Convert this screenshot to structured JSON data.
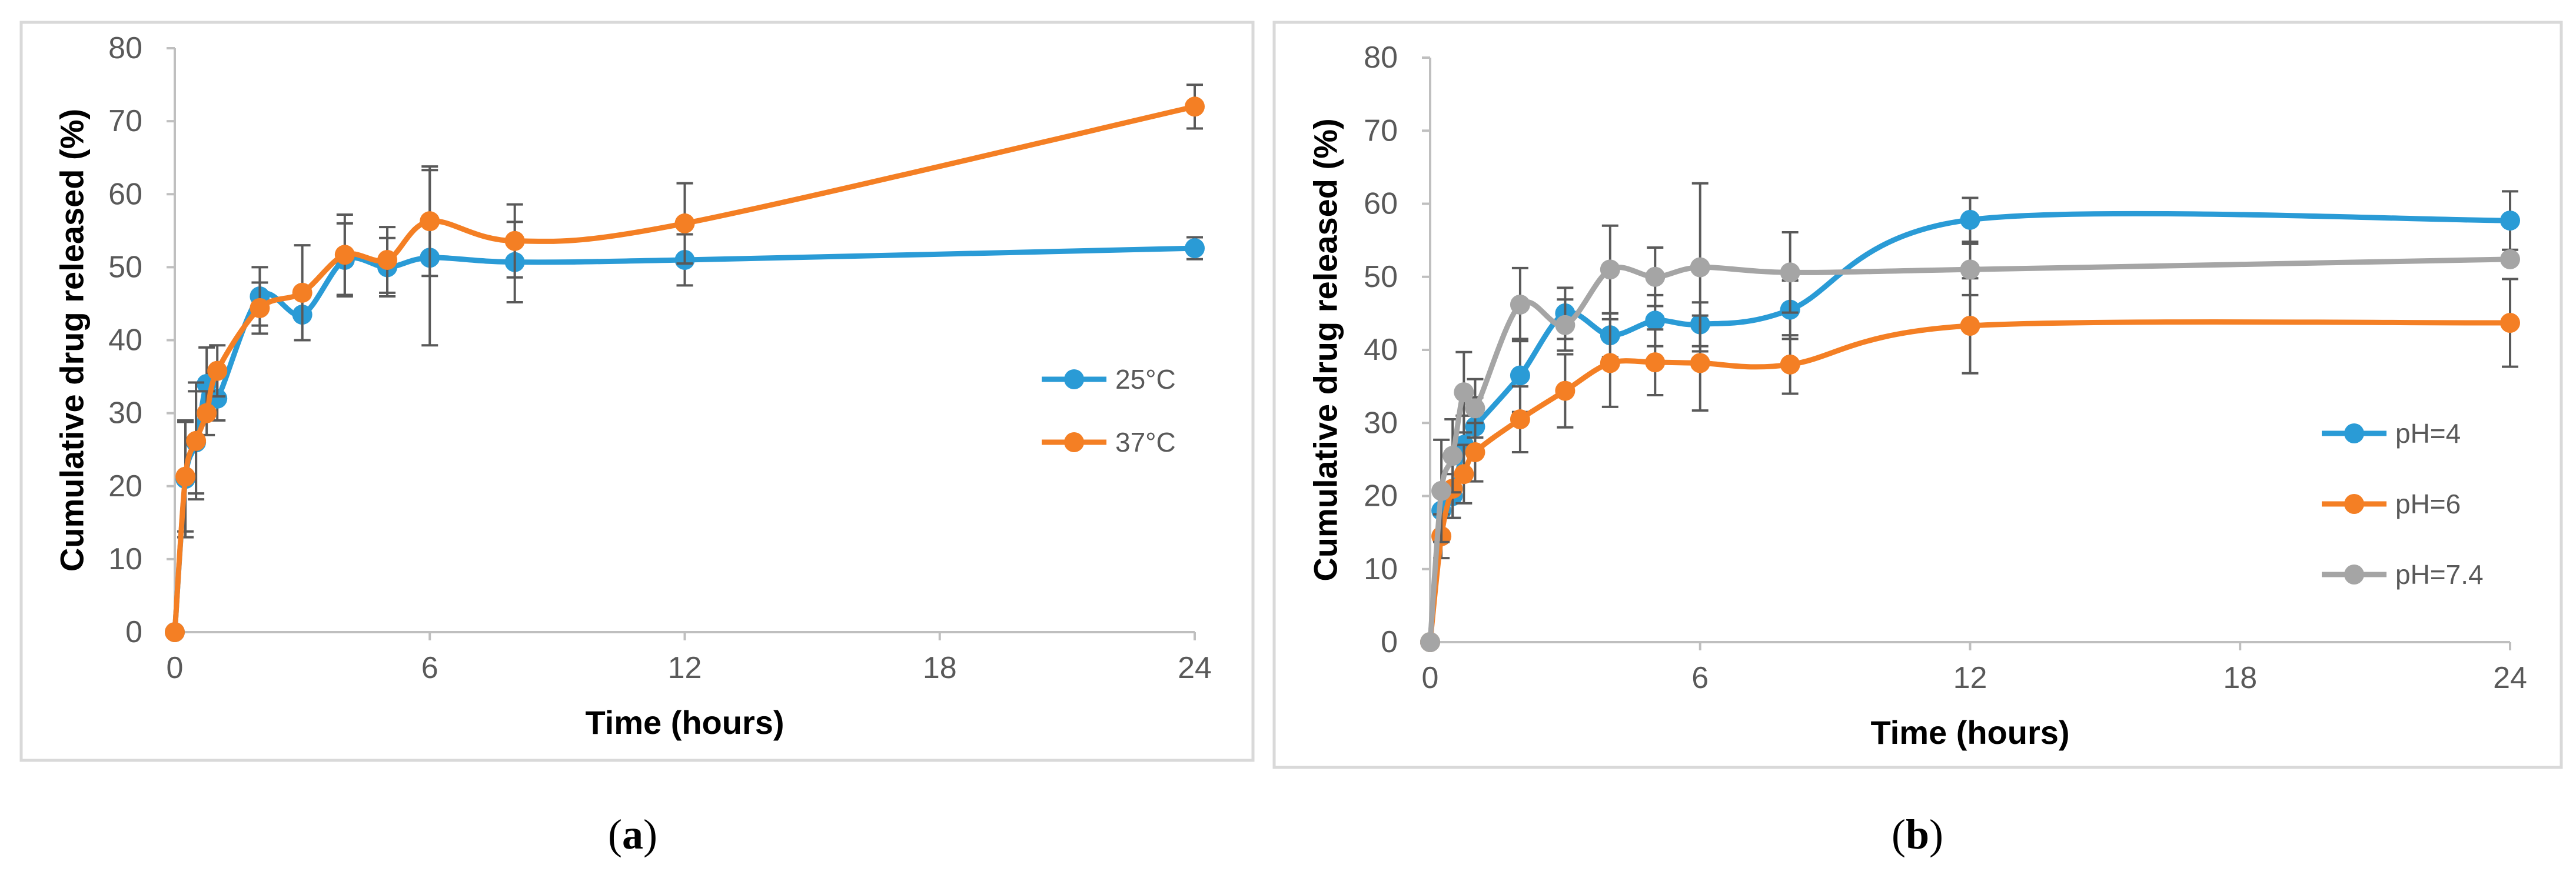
{
  "chart_data": [
    {
      "panel": "a",
      "type": "line",
      "title": "",
      "xlabel": "Time (hours)",
      "ylabel": "Cumulative drug released (%)",
      "xlim": [
        0,
        24
      ],
      "ylim": [
        0,
        80
      ],
      "xticks": [
        0,
        6,
        12,
        18,
        24
      ],
      "yticks": [
        0,
        10,
        20,
        30,
        40,
        50,
        60,
        70,
        80
      ],
      "grid": false,
      "legend_position": "right",
      "series": [
        {
          "name": "25°C",
          "color": "#2A9BD6",
          "x": [
            0,
            0.25,
            0.5,
            0.75,
            1,
            2,
            3,
            4,
            5,
            6,
            8,
            12,
            24
          ],
          "y": [
            0,
            21,
            26,
            34,
            32,
            46,
            43.5,
            51,
            50,
            51.3,
            50.7,
            51,
            52.6
          ],
          "error": [
            0,
            8,
            7,
            5,
            3,
            4,
            3.5,
            5,
            4,
            12,
            5.5,
            3.5,
            1.5
          ]
        },
        {
          "name": "37°C",
          "color": "#F47F24",
          "x": [
            0,
            0.25,
            0.5,
            0.75,
            1,
            2,
            3,
            4,
            5,
            6,
            8,
            12,
            24
          ],
          "y": [
            0,
            21.3,
            26.2,
            30,
            35.8,
            44.4,
            46.5,
            51.7,
            51,
            56.3,
            53.6,
            56,
            72
          ],
          "error": [
            0,
            7.5,
            8,
            3,
            3.5,
            3.5,
            6.5,
            5.5,
            4.5,
            7.5,
            5,
            5.5,
            3
          ]
        }
      ]
    },
    {
      "panel": "b",
      "type": "line",
      "title": "",
      "xlabel": "Time (hours)",
      "ylabel": "Cumulative drug released (%)",
      "xlim": [
        0,
        24
      ],
      "ylim": [
        0,
        80
      ],
      "xticks": [
        0,
        6,
        12,
        18,
        24
      ],
      "yticks": [
        0,
        10,
        20,
        30,
        40,
        50,
        60,
        70,
        80
      ],
      "grid": false,
      "legend_position": "right",
      "series": [
        {
          "name": "pH=4",
          "color": "#2A9BD6",
          "x": [
            0,
            0.25,
            0.5,
            0.75,
            1,
            2,
            3,
            4,
            5,
            6,
            8,
            12,
            24
          ],
          "y": [
            0,
            18,
            20,
            27,
            29.5,
            36.5,
            45,
            42,
            44,
            43.5,
            45.5,
            57.8,
            57.7
          ],
          "error": [
            0,
            3,
            3,
            4,
            4,
            5,
            3.5,
            3,
            3.5,
            3,
            4,
            3,
            4
          ]
        },
        {
          "name": "pH=6",
          "color": "#F47F24",
          "x": [
            0,
            0.25,
            0.5,
            0.75,
            1,
            2,
            3,
            4,
            5,
            6,
            8,
            12,
            24
          ],
          "y": [
            0,
            14.5,
            21,
            23,
            26,
            30.5,
            34.4,
            38.2,
            38.3,
            38.2,
            38,
            43.3,
            43.7
          ],
          "error": [
            0,
            3,
            4,
            4,
            4,
            4.5,
            5,
            6,
            4.5,
            6.5,
            4,
            6.5,
            6
          ]
        },
        {
          "name": "pH=7.4",
          "color": "#A5A5A5",
          "x": [
            0,
            0.25,
            0.5,
            0.75,
            1,
            2,
            3,
            4,
            5,
            6,
            8,
            12,
            24
          ],
          "y": [
            0,
            20.7,
            25.5,
            34.2,
            32,
            46.2,
            43.4,
            51,
            50,
            51.3,
            50.6,
            51,
            52.4
          ],
          "error": [
            0,
            7,
            5,
            5.5,
            4,
            5,
            3.5,
            6,
            4,
            11.5,
            5.5,
            3.5,
            0.5
          ]
        }
      ]
    }
  ],
  "captions": {
    "a": "a",
    "b": "b"
  }
}
